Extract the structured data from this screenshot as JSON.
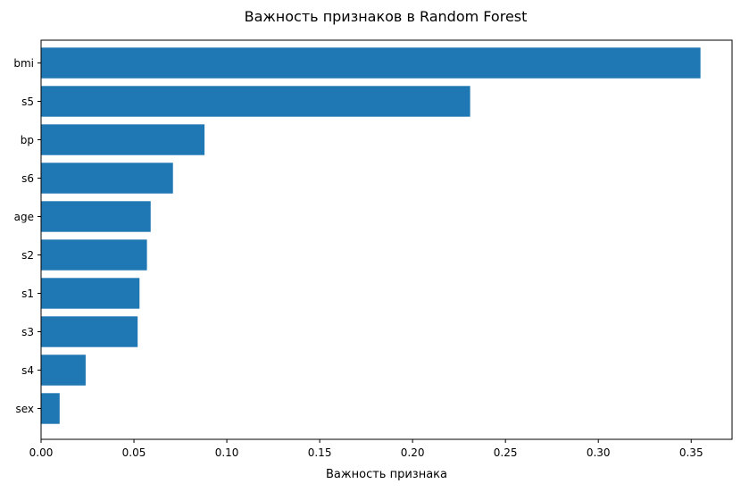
{
  "chart_data": {
    "type": "bar",
    "orientation": "horizontal",
    "title": "Важность признаков в Random Forest",
    "xlabel": "Важность признака",
    "ylabel": "",
    "categories": [
      "bmi",
      "s5",
      "bp",
      "s6",
      "age",
      "s2",
      "s1",
      "s3",
      "s4",
      "sex"
    ],
    "values": [
      0.355,
      0.231,
      0.088,
      0.071,
      0.059,
      0.057,
      0.053,
      0.052,
      0.024,
      0.01
    ],
    "xlim": [
      0,
      0.372
    ],
    "xticks": [
      0.0,
      0.05,
      0.1,
      0.15,
      0.2,
      0.25,
      0.3,
      0.35
    ],
    "xtick_labels": [
      "0.00",
      "0.05",
      "0.10",
      "0.15",
      "0.20",
      "0.25",
      "0.30",
      "0.35"
    ],
    "grid": false,
    "legend": "none",
    "bar_color": "#1f77b4"
  }
}
